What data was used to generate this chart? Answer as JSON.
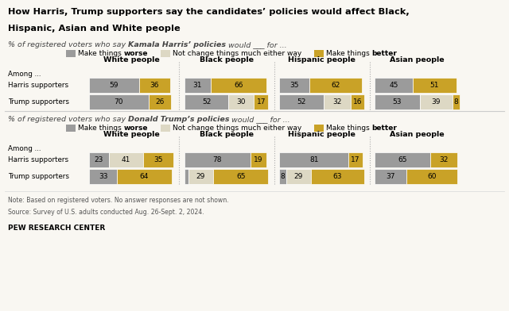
{
  "title_line1": "How Harris, Trump supporters say the candidates’ policies would affect Black,",
  "title_line2": "Hispanic, Asian and White people",
  "note": "Note: Based on registered voters. No answer responses are not shown.",
  "source": "Source: Survey of U.S. adults conducted Aug. 26-Sept. 2, 2024.",
  "branding": "PEW RESEARCH CENTER",
  "groups": [
    "White people",
    "Black people",
    "Hispanic people",
    "Asian people"
  ],
  "colors": {
    "worse": "#9b9b9b",
    "neutral": "#ddd8c4",
    "better": "#c9a227"
  },
  "harris_section": {
    "harris_supporters": {
      "White people": [
        59,
        0,
        36
      ],
      "Black people": [
        31,
        0,
        66
      ],
      "Hispanic people": [
        35,
        0,
        62
      ],
      "Asian people": [
        45,
        0,
        51
      ]
    },
    "trump_supporters": {
      "White people": [
        70,
        0,
        26
      ],
      "Black people": [
        52,
        30,
        17
      ],
      "Hispanic people": [
        52,
        32,
        16
      ],
      "Asian people": [
        53,
        39,
        8
      ]
    }
  },
  "trump_section": {
    "harris_supporters": {
      "White people": [
        23,
        41,
        35
      ],
      "Black people": [
        78,
        0,
        19
      ],
      "Hispanic people": [
        81,
        0,
        17
      ],
      "Asian people": [
        65,
        0,
        32
      ]
    },
    "trump_supporters": {
      "White people": [
        33,
        0,
        64
      ],
      "Black people": [
        5,
        29,
        65
      ],
      "Hispanic people": [
        8,
        29,
        63
      ],
      "Asian people": [
        37,
        0,
        60
      ]
    }
  },
  "bg_color": "#f9f7f2"
}
